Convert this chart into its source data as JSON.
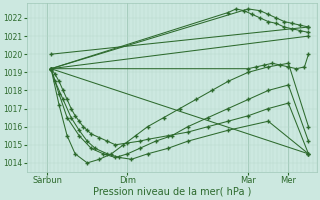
{
  "title": "",
  "xlabel": "Pression niveau de la mer( hPa )",
  "bg_color": "#cce8e0",
  "plot_bg_color": "#cce8e0",
  "line_color": "#2d6a2d",
  "marker": "+",
  "markersize": 3.5,
  "linewidth": 0.75,
  "ylim": [
    1013.5,
    1022.8
  ],
  "yticks": [
    1014,
    1015,
    1016,
    1017,
    1018,
    1019,
    1020,
    1021,
    1022
  ],
  "xtick_labels": [
    "Sàrbun",
    "Dim",
    "Mar",
    "Mer"
  ],
  "xtick_positions": [
    0.5,
    2.5,
    5.5,
    6.5
  ],
  "xlim": [
    0,
    7.2
  ],
  "grid_minor_color": "#b8d8cc",
  "grid_major_color": "#a0c8b8",
  "series": [
    {
      "x": [
        0.6,
        7.0
      ],
      "y": [
        1020.0,
        1021.5
      ],
      "dense": false
    },
    {
      "x": [
        0.6,
        7.0
      ],
      "y": [
        1019.2,
        1021.0
      ],
      "dense": false
    },
    {
      "x": [
        0.6,
        5.5,
        5.8,
        6.0,
        6.2,
        6.4,
        6.6,
        6.8,
        7.0
      ],
      "y": [
        1019.2,
        1022.5,
        1022.4,
        1022.2,
        1022.0,
        1021.8,
        1021.7,
        1021.6,
        1021.5
      ],
      "dense": true
    },
    {
      "x": [
        0.6,
        5.0,
        5.2,
        5.4,
        5.6,
        5.8,
        6.0,
        6.2,
        6.4,
        6.6,
        6.8,
        7.0
      ],
      "y": [
        1019.2,
        1022.3,
        1022.5,
        1022.4,
        1022.2,
        1022.0,
        1021.8,
        1021.7,
        1021.5,
        1021.4,
        1021.3,
        1021.2
      ],
      "dense": true
    },
    {
      "x": [
        0.6,
        5.5,
        5.7,
        5.9,
        6.1,
        6.3,
        6.5,
        6.7,
        6.9,
        7.0
      ],
      "y": [
        1019.2,
        1019.2,
        1019.3,
        1019.4,
        1019.5,
        1019.4,
        1019.3,
        1019.2,
        1019.3,
        1020.0
      ],
      "dense": true
    },
    {
      "x": [
        0.6,
        0.7,
        0.8,
        0.9,
        1.0,
        1.1,
        1.2,
        1.3,
        1.4,
        1.5,
        1.6,
        1.8,
        2.0,
        2.2,
        2.5,
        2.8,
        3.0,
        3.5,
        4.0,
        4.5,
        5.0,
        5.5,
        6.0,
        6.5,
        7.0
      ],
      "y": [
        1019.2,
        1018.9,
        1018.5,
        1018.0,
        1017.5,
        1017.0,
        1016.6,
        1016.3,
        1016.0,
        1015.8,
        1015.6,
        1015.4,
        1015.2,
        1015.0,
        1015.1,
        1015.2,
        1015.3,
        1015.5,
        1015.7,
        1016.0,
        1016.3,
        1016.6,
        1017.0,
        1017.3,
        1014.5
      ],
      "dense": true
    },
    {
      "x": [
        0.6,
        0.7,
        0.9,
        1.1,
        1.3,
        1.5,
        1.7,
        2.0,
        2.3,
        2.6,
        3.0,
        3.5,
        4.0,
        5.0,
        6.0,
        7.0
      ],
      "y": [
        1019.2,
        1018.5,
        1017.5,
        1016.5,
        1015.8,
        1015.2,
        1014.8,
        1014.5,
        1014.3,
        1014.2,
        1014.5,
        1014.8,
        1015.2,
        1015.8,
        1016.3,
        1014.5
      ],
      "dense": true
    },
    {
      "x": [
        0.6,
        0.8,
        1.0,
        1.3,
        1.6,
        1.9,
        2.2,
        2.5,
        2.8,
        3.2,
        3.6,
        4.0,
        4.5,
        5.0,
        5.5,
        6.0,
        6.5,
        7.0
      ],
      "y": [
        1019.2,
        1017.8,
        1016.5,
        1015.5,
        1014.8,
        1014.5,
        1014.3,
        1014.5,
        1014.8,
        1015.2,
        1015.5,
        1016.0,
        1016.5,
        1017.0,
        1017.5,
        1018.0,
        1018.3,
        1015.2
      ],
      "dense": true
    },
    {
      "x": [
        0.6,
        0.8,
        1.0,
        1.2,
        1.5,
        1.8,
        2.1,
        2.4,
        2.7,
        3.0,
        3.4,
        3.8,
        4.2,
        4.6,
        5.0,
        5.5,
        6.0,
        6.5,
        7.0
      ],
      "y": [
        1019.2,
        1017.2,
        1015.5,
        1014.5,
        1014.0,
        1014.2,
        1014.5,
        1015.0,
        1015.5,
        1016.0,
        1016.5,
        1017.0,
        1017.5,
        1018.0,
        1018.5,
        1019.0,
        1019.3,
        1019.5,
        1016.0
      ],
      "dense": true
    },
    {
      "x": [
        0.6,
        7.0
      ],
      "y": [
        1019.2,
        1014.5
      ],
      "dense": false
    }
  ]
}
